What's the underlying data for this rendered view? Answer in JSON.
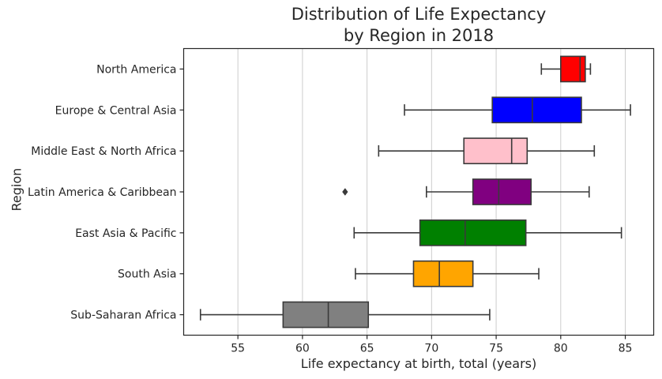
{
  "chart_data": {
    "type": "box",
    "orientation": "horizontal",
    "title": [
      "Distribution of Life Expectancy",
      "by Region in 2018"
    ],
    "xlabel": "Life expectancy at birth, total (years)",
    "ylabel": "Region",
    "xlim": [
      50.8,
      87.2
    ],
    "xticks": [
      55,
      60,
      65,
      70,
      75,
      80,
      85
    ],
    "grid": "vertical",
    "categories": [
      "North America",
      "Europe & Central Asia",
      "Middle East & North Africa",
      "Latin America & Caribbean",
      "East Asia & Pacific",
      "South Asia",
      "Sub-Saharan Africa"
    ],
    "boxes": [
      {
        "category": "North America",
        "color": "#ff0000",
        "whisker_low": 78.5,
        "q1": 80.0,
        "median": 81.5,
        "q3": 81.9,
        "whisker_high": 82.3,
        "outliers": []
      },
      {
        "category": "Europe & Central Asia",
        "color": "#0000ff",
        "whisker_low": 67.9,
        "q1": 74.7,
        "median": 77.8,
        "q3": 81.6,
        "whisker_high": 85.4,
        "outliers": []
      },
      {
        "category": "Middle East & North Africa",
        "color": "#ffc0cb",
        "whisker_low": 65.9,
        "q1": 72.5,
        "median": 76.2,
        "q3": 77.4,
        "whisker_high": 82.6,
        "outliers": []
      },
      {
        "category": "Latin America & Caribbean",
        "color": "#800080",
        "whisker_low": 69.6,
        "q1": 73.2,
        "median": 75.2,
        "q3": 77.7,
        "whisker_high": 82.2,
        "outliers": [
          63.3
        ]
      },
      {
        "category": "East Asia & Pacific",
        "color": "#008000",
        "whisker_low": 64.0,
        "q1": 69.1,
        "median": 72.6,
        "q3": 77.3,
        "whisker_high": 84.7,
        "outliers": []
      },
      {
        "category": "South Asia",
        "color": "#ffa500",
        "whisker_low": 64.1,
        "q1": 68.6,
        "median": 70.6,
        "q3": 73.2,
        "whisker_high": 78.3,
        "outliers": []
      },
      {
        "category": "Sub-Saharan Africa",
        "color": "#808080",
        "whisker_low": 52.1,
        "q1": 58.5,
        "median": 62.0,
        "q3": 65.1,
        "whisker_high": 74.5,
        "outliers": []
      }
    ]
  }
}
